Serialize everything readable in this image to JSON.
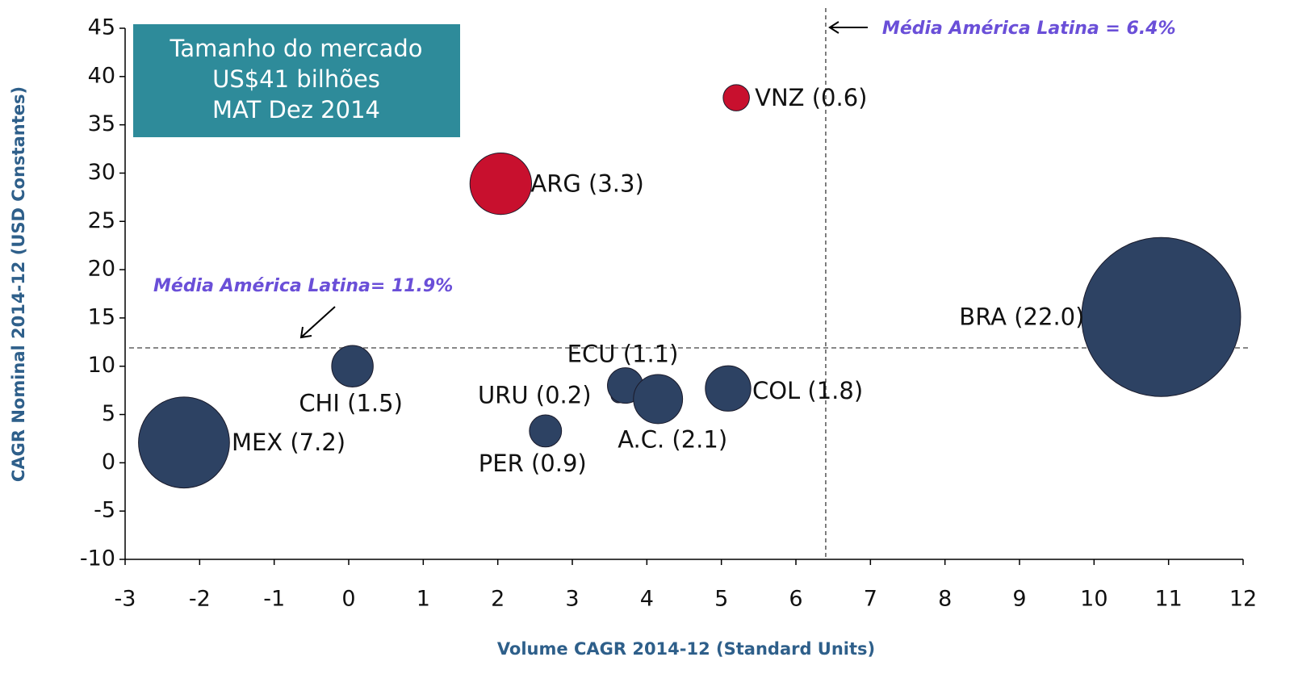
{
  "chart_data": {
    "type": "bubble",
    "xlabel": "Volume CAGR 2014-12 (Standard Units)",
    "ylabel": "CAGR Nominal 2014-12 (USD Constantes)",
    "xlim": [
      -3,
      12
    ],
    "xticks": [
      -3,
      -2,
      -1,
      0,
      1,
      2,
      3,
      4,
      5,
      6,
      7,
      8,
      9,
      10,
      11,
      12
    ],
    "ylim": [
      -10,
      45
    ],
    "yticks": [
      -10,
      -5,
      0,
      5,
      10,
      15,
      20,
      25,
      30,
      35,
      40,
      45
    ],
    "points": {
      "labels": [
        "MEX (7.2)",
        "CHI (1.5)",
        "ARG (3.3)",
        "VNZ (0.6)",
        "PER (0.9)",
        "URU (0.2)",
        "ECU (1.1)",
        "A.C. (2.1)",
        "COL (1.8)",
        "BRA (22.0)"
      ],
      "x": [
        -2.21,
        0.05,
        2.04,
        5.2,
        2.64,
        3.62,
        3.71,
        4.15,
        5.09,
        10.9
      ],
      "y": [
        2.1,
        10.0,
        28.9,
        37.8,
        3.3,
        7.0,
        8.0,
        6.6,
        7.7,
        15.1
      ],
      "sizes": [
        7.2,
        1.5,
        3.3,
        0.6,
        0.9,
        0.2,
        1.1,
        2.1,
        1.8,
        22.0
      ],
      "colors": [
        "#2d4263",
        "#2d4263",
        "#c8102e",
        "#c8102e",
        "#2d4263",
        "#2d4263",
        "#2d4263",
        "#2d4263",
        "#2d4263",
        "#2d4263"
      ]
    },
    "reference_lines": [
      {
        "axis": "x",
        "value": 6.4,
        "label": "Média América Latina = 6.4%"
      },
      {
        "axis": "y",
        "value": 11.9,
        "label": "Média América Latina= 11.9%"
      }
    ],
    "annotation_box": {
      "lines": [
        "Tamanho do mercado",
        "US$41 bilhões",
        "MAT Dez 2014"
      ],
      "color": "#2e8b9a"
    }
  }
}
